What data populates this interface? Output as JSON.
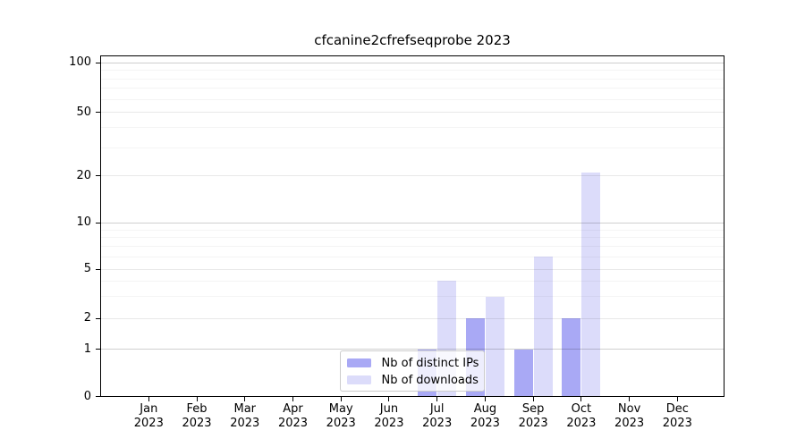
{
  "title": "cfcanine2cfrefseqprobe 2023",
  "chart_data": {
    "type": "bar",
    "title": "cfcanine2cfrefseqprobe 2023",
    "year": "2023",
    "months": [
      "Jan",
      "Feb",
      "Mar",
      "Apr",
      "May",
      "Jun",
      "Jul",
      "Aug",
      "Sep",
      "Oct",
      "Nov",
      "Dec"
    ],
    "series": [
      {
        "name": "Nb of distinct IPs",
        "key": "distinct-ips",
        "color": "#a9a9f5",
        "values": [
          0,
          0,
          0,
          0,
          0,
          0,
          1,
          2,
          1,
          2,
          0,
          0
        ]
      },
      {
        "name": "Nb of downloads",
        "key": "downloads",
        "color": "#dcdcfa",
        "values": [
          0,
          0,
          0,
          0,
          0,
          0,
          4,
          3,
          6,
          21,
          0,
          0
        ]
      }
    ],
    "y_axis": {
      "scale": "log above 1, linear 0-1",
      "ticks": [
        0,
        1,
        2,
        5,
        10,
        20,
        50,
        100
      ],
      "minor_ticks": [
        3,
        4,
        6,
        7,
        8,
        9,
        30,
        40,
        60,
        70,
        80,
        90
      ],
      "range": [
        0,
        110
      ]
    },
    "x_axis": {
      "label_line1": "month",
      "label_line2": "year"
    },
    "legend": {
      "position": "inside-bottom-center",
      "items": [
        "Nb of distinct IPs",
        "Nb of downloads"
      ]
    },
    "grid": "horizontal",
    "colors": {
      "grid_decade": "#cfcfcf",
      "grid_major": "#ebebeb",
      "grid_minor": "#f5f5f5",
      "axis": "#000000"
    }
  }
}
